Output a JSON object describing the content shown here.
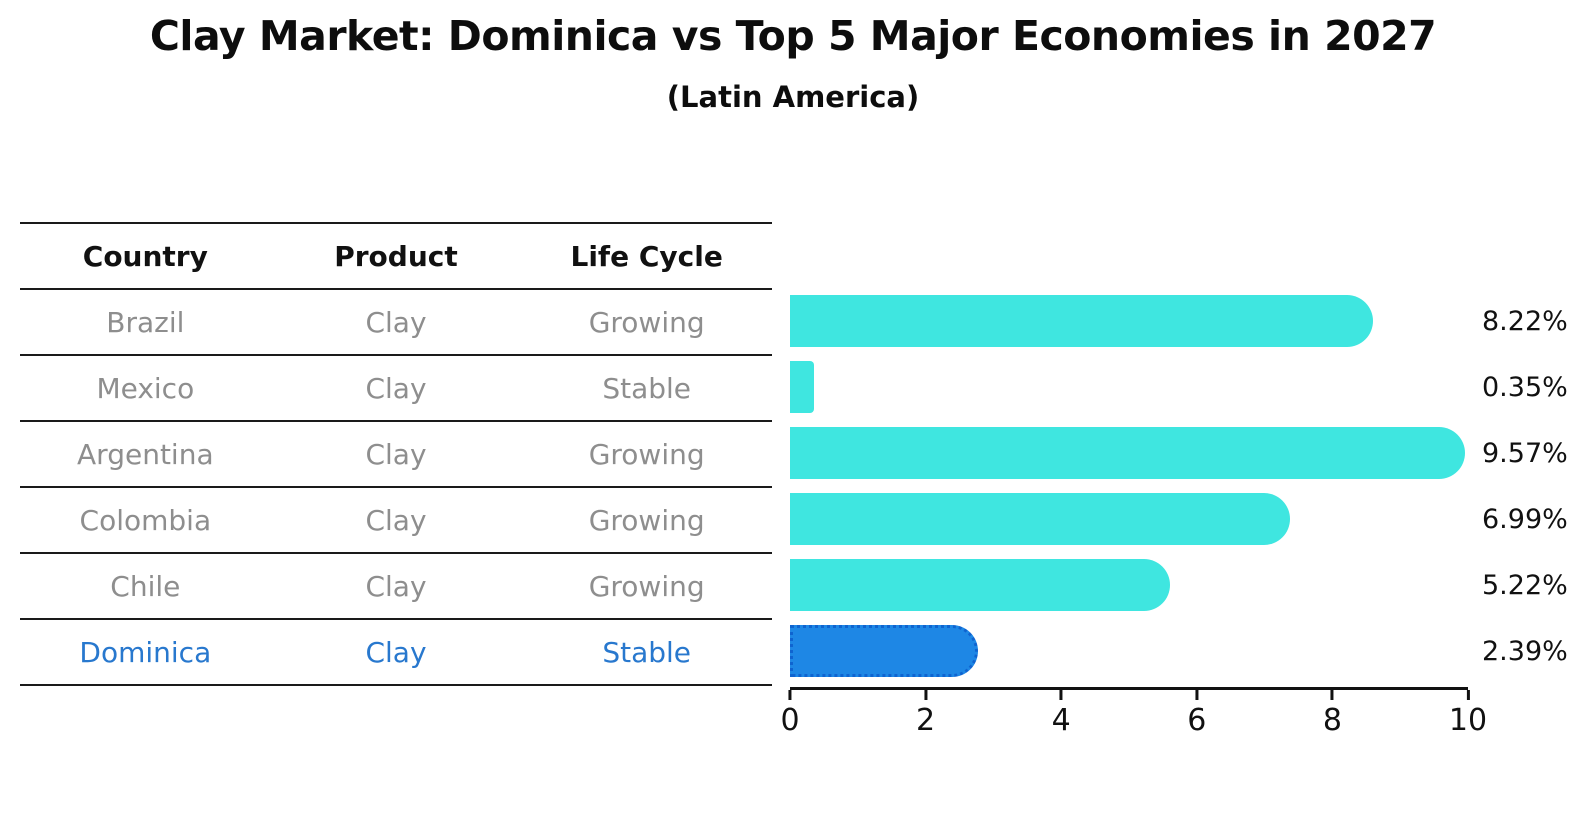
{
  "chart_data": {
    "type": "bar",
    "orientation": "horizontal",
    "title": "Clay Market: Dominica vs Top 5 Major Economies in 2027",
    "subtitle": "(Latin America)",
    "categories": [
      "Brazil",
      "Mexico",
      "Argentina",
      "Colombia",
      "Chile",
      "Dominica"
    ],
    "values": [
      8.22,
      0.35,
      9.57,
      6.99,
      5.22,
      2.39
    ],
    "value_labels": [
      "8.22%",
      "0.35%",
      "9.57%",
      "6.99%",
      "5.22%",
      "2.39%"
    ],
    "x_ticks": [
      0,
      2,
      4,
      6,
      8,
      10
    ],
    "x_tick_labels": [
      "0",
      "2",
      "4",
      "6",
      "8",
      "10"
    ],
    "xlim": [
      0,
      10
    ],
    "xlabel": "",
    "ylabel": "",
    "grid": false,
    "legend": false,
    "bar_color": "#3fe6e0",
    "highlight_index": 5,
    "highlight_color": "#1e87e5",
    "highlight_border_color": "#0f64d0"
  },
  "table": {
    "headers": [
      "Country",
      "Product",
      "Life Cycle"
    ],
    "rows": [
      {
        "country": "Brazil",
        "product": "Clay",
        "life_cycle": "Growing",
        "highlighted": false
      },
      {
        "country": "Mexico",
        "product": "Clay",
        "life_cycle": "Stable",
        "highlighted": false
      },
      {
        "country": "Argentina",
        "product": "Clay",
        "life_cycle": "Growing",
        "highlighted": false
      },
      {
        "country": "Colombia",
        "product": "Clay",
        "life_cycle": "Growing",
        "highlighted": false
      },
      {
        "country": "Chile",
        "product": "Clay",
        "life_cycle": "Growing",
        "highlighted": false
      },
      {
        "country": "Dominica",
        "product": "Clay",
        "life_cycle": "Stable",
        "highlighted": true
      }
    ],
    "highlight_text_color": "#2878ce"
  }
}
